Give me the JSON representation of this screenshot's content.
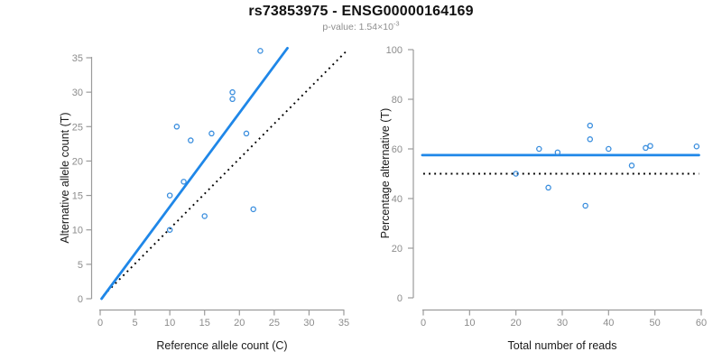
{
  "header": {
    "title": "rs73853975 - ENSG00000164169",
    "p_value_label": "p-value: 1.54×10",
    "p_value_exponent": "-3"
  },
  "colors": {
    "regression_blue": "#1F87E8",
    "point_blue": "#3A8EDE",
    "dotted_black": "#000000",
    "axis_gray": "#9B9B9B",
    "tick_label_gray": "#8C8C8C",
    "axis_title_color": "#1A1A1A",
    "title_color": "#111111",
    "subtitle_gray": "#8E8E8E"
  },
  "chart_data": [
    {
      "type": "scatter",
      "name": "allele-counts-plot",
      "xlabel": "Reference allele count (C)",
      "ylabel": "Alternative allele count (T)",
      "xlim": [
        0,
        35
      ],
      "ylim": [
        0,
        35
      ],
      "xticks": [
        0,
        5,
        10,
        15,
        20,
        25,
        30,
        35
      ],
      "yticks": [
        0,
        5,
        10,
        15,
        20,
        25,
        30,
        35
      ],
      "grid": false,
      "points": [
        [
          23,
          36
        ],
        [
          19,
          30
        ],
        [
          19,
          29
        ],
        [
          11,
          25
        ],
        [
          13,
          23
        ],
        [
          16,
          24
        ],
        [
          21,
          24
        ],
        [
          12,
          17
        ],
        [
          10,
          15
        ],
        [
          15,
          12
        ],
        [
          22,
          13
        ],
        [
          10,
          10
        ]
      ],
      "lines": [
        {
          "name": "identity-line",
          "style": "dotted",
          "color_key": "dotted_black",
          "x1": 0.5,
          "y1": 0.5,
          "x2": 35.5,
          "y2": 36.1
        },
        {
          "name": "regression-line",
          "style": "solid",
          "color_key": "regression_blue",
          "x1": 0.2,
          "y1": 0,
          "x2": 26.9,
          "y2": 36.4
        }
      ]
    },
    {
      "type": "scatter",
      "name": "percentage-alternative-plot",
      "xlabel": "Total number of reads",
      "ylabel": "Percentage alternative (T)",
      "xlim": [
        0,
        60
      ],
      "ylim": [
        0,
        100
      ],
      "xticks": [
        0,
        10,
        20,
        30,
        40,
        50,
        60
      ],
      "yticks": [
        0,
        20,
        40,
        60,
        80,
        100
      ],
      "grid": false,
      "points": [
        [
          20,
          50
        ],
        [
          25,
          60
        ],
        [
          27,
          44.4
        ],
        [
          29,
          58.6
        ],
        [
          35,
          37.1
        ],
        [
          36,
          69.4
        ],
        [
          36,
          63.9
        ],
        [
          40,
          60
        ],
        [
          45,
          53.3
        ],
        [
          48,
          60.4
        ],
        [
          49,
          61.2
        ],
        [
          59,
          61
        ]
      ],
      "lines": [
        {
          "name": "fifty-percent-line",
          "style": "dotted",
          "color_key": "dotted_black",
          "x1": 0,
          "y1": 50,
          "x2": 59.5,
          "y2": 50
        },
        {
          "name": "mean-percentage-line",
          "style": "solid",
          "color_key": "regression_blue",
          "x1": -0.2,
          "y1": 57.5,
          "x2": 59.5,
          "y2": 57.5
        }
      ]
    }
  ]
}
